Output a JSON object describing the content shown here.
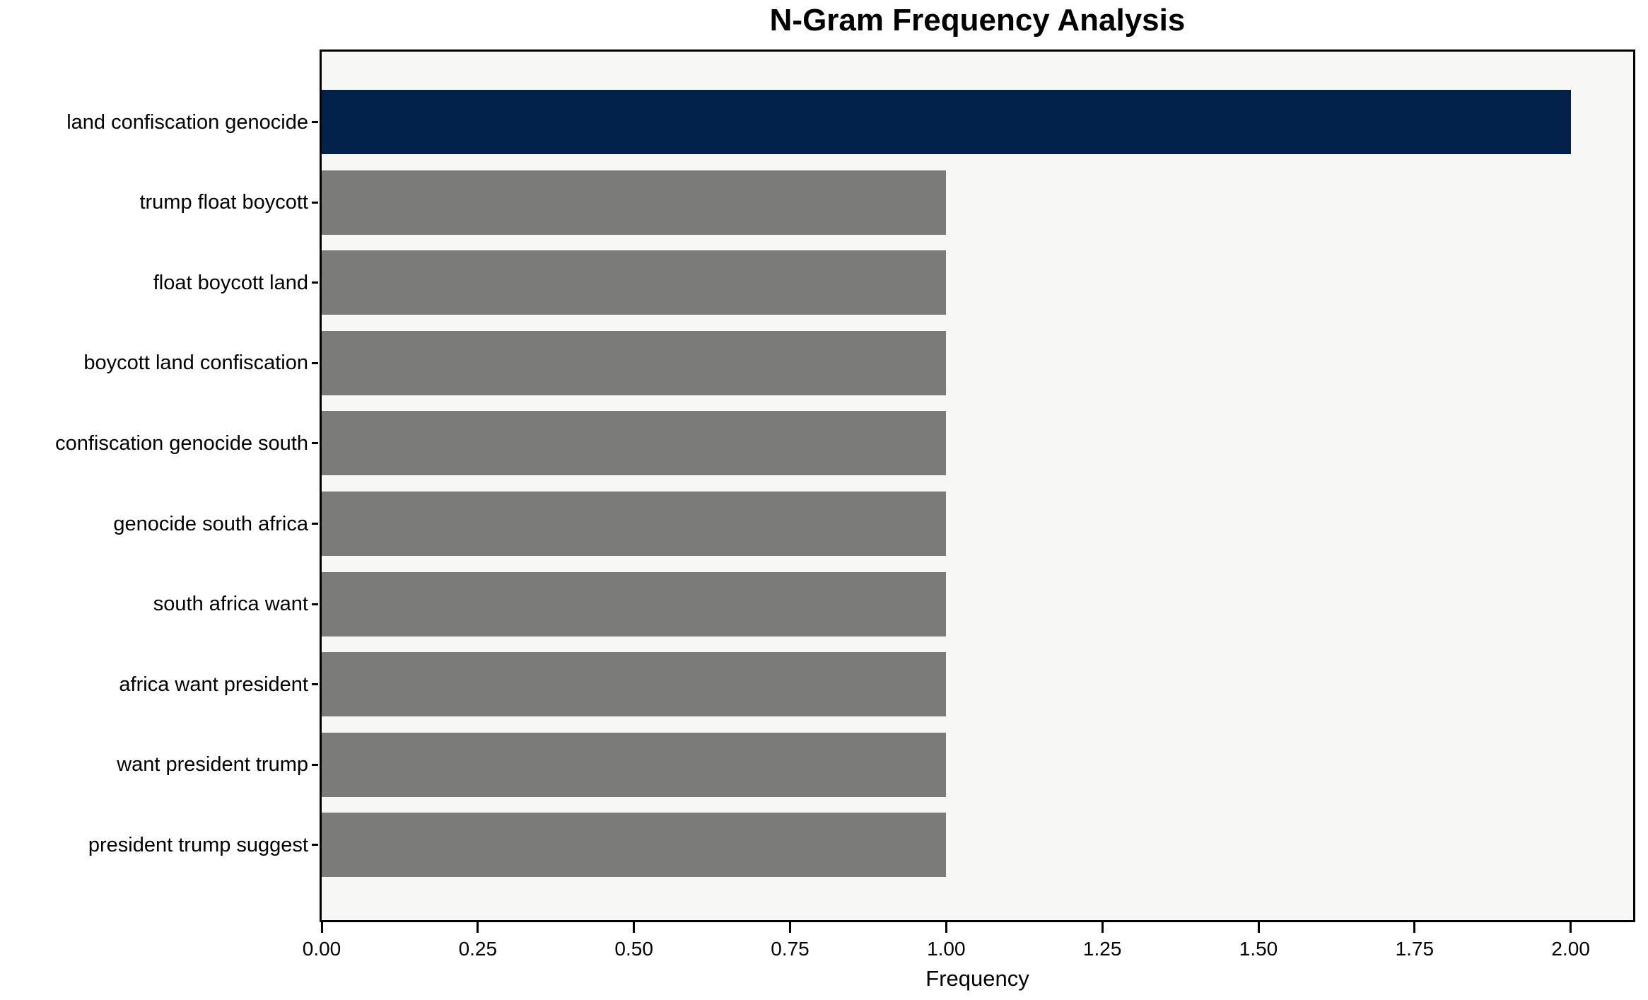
{
  "chart_data": {
    "type": "bar",
    "orientation": "horizontal",
    "title": "N-Gram Frequency Analysis",
    "xlabel": "Frequency",
    "ylabel": "",
    "categories": [
      "land confiscation genocide",
      "trump float boycott",
      "float boycott land",
      "boycott land confiscation",
      "confiscation genocide south",
      "genocide south africa",
      "south africa want",
      "africa want president",
      "want president trump",
      "president trump suggest"
    ],
    "values": [
      2,
      1,
      1,
      1,
      1,
      1,
      1,
      1,
      1,
      1
    ],
    "bar_colors": [
      "#02224c",
      "#7b7b79",
      "#7b7b79",
      "#7b7b79",
      "#7b7b79",
      "#7b7b79",
      "#7b7b79",
      "#7b7b79",
      "#7b7b79",
      "#7b7b79"
    ],
    "highlight_color": "#02224c",
    "default_bar_color": "#7b7b79",
    "plot_background": "#f7f7f6",
    "axis_color": "#000000",
    "xlim": [
      0,
      2.1
    ],
    "xtick_values": [
      0,
      0.25,
      0.5,
      0.75,
      1.0,
      1.25,
      1.5,
      1.75,
      2.0
    ],
    "xtick_labels": [
      "0.00",
      "0.25",
      "0.50",
      "0.75",
      "1.00",
      "1.25",
      "1.50",
      "1.75",
      "2.00"
    ],
    "grid": false,
    "legend": null
  }
}
